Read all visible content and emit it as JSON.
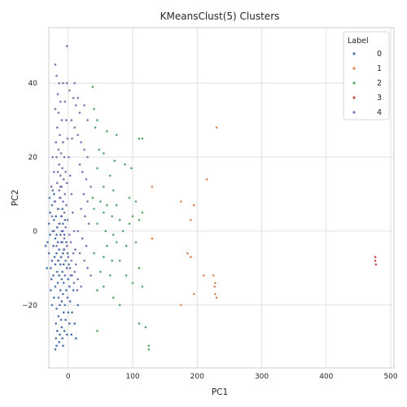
{
  "chart_data": {
    "type": "scatter",
    "title": "KMeansClust(5) Clusters",
    "xlabel": "PC1",
    "ylabel": "PC2",
    "xlim": [
      -30,
      505
    ],
    "ylim": [
      -37,
      55
    ],
    "xticks": [
      0,
      100,
      200,
      300,
      400,
      500
    ],
    "yticks": [
      -20,
      0,
      20,
      40
    ],
    "grid": true,
    "legend": {
      "title": "Label",
      "placement": "top-right"
    },
    "series": [
      {
        "name": "0",
        "color": "#4c72b0",
        "points": [
          [
            -35,
            -4
          ],
          [
            -32,
            -3
          ],
          [
            -30,
            2
          ],
          [
            -30,
            -6
          ],
          [
            -28,
            5
          ],
          [
            -28,
            -1
          ],
          [
            -27,
            -10
          ],
          [
            -27,
            -16
          ],
          [
            -26,
            -13
          ],
          [
            -25,
            7
          ],
          [
            -25,
            -8
          ],
          [
            -24,
            0
          ],
          [
            -24,
            11
          ],
          [
            -23,
            -4
          ],
          [
            -23,
            -12
          ],
          [
            -22,
            3
          ],
          [
            -22,
            -18
          ],
          [
            -21,
            -7
          ],
          [
            -21,
            8
          ],
          [
            -20,
            -2
          ],
          [
            -20,
            -9
          ],
          [
            -20,
            -15
          ],
          [
            -19,
            4
          ],
          [
            -19,
            -25
          ],
          [
            -19,
            -29
          ],
          [
            -18,
            -1
          ],
          [
            -18,
            -6
          ],
          [
            -18,
            -21
          ],
          [
            -17,
            1
          ],
          [
            -17,
            -11
          ],
          [
            -17,
            -27
          ],
          [
            -16,
            6
          ],
          [
            -16,
            -3
          ],
          [
            -16,
            -14
          ],
          [
            -15,
            -8
          ],
          [
            -15,
            -23
          ],
          [
            -15,
            -18
          ],
          [
            -14,
            2
          ],
          [
            -14,
            -5
          ],
          [
            -14,
            -12
          ],
          [
            -13,
            -20
          ],
          [
            -13,
            9
          ],
          [
            -13,
            -28
          ],
          [
            -12,
            -1
          ],
          [
            -12,
            -9
          ],
          [
            -12,
            -16
          ],
          [
            -11,
            4
          ],
          [
            -11,
            -24
          ],
          [
            -11,
            -7
          ],
          [
            -10,
            -13
          ],
          [
            -10,
            0
          ],
          [
            -10,
            -19
          ],
          [
            -10,
            -26
          ],
          [
            -9,
            -3
          ],
          [
            -9,
            6
          ],
          [
            -9,
            -11
          ],
          [
            -9,
            -29
          ],
          [
            -8,
            -6
          ],
          [
            -8,
            -17
          ],
          [
            -8,
            2
          ],
          [
            -7,
            -22
          ],
          [
            -7,
            -9
          ],
          [
            -7,
            -14
          ],
          [
            -6,
            -1
          ],
          [
            -6,
            -27
          ],
          [
            -6,
            -5
          ],
          [
            -5,
            -12
          ],
          [
            -5,
            -20
          ],
          [
            -5,
            3
          ],
          [
            -4,
            -8
          ],
          [
            -4,
            -24
          ],
          [
            -3,
            -16
          ],
          [
            -3,
            -3
          ],
          [
            -2,
            -10
          ],
          [
            -2,
            -28
          ],
          [
            -1,
            -6
          ],
          [
            -1,
            -18
          ],
          [
            0,
            -13
          ],
          [
            0,
            -22
          ],
          [
            1,
            -9
          ],
          [
            2,
            -25
          ],
          [
            2,
            -15
          ],
          [
            3,
            -19
          ],
          [
            4,
            -12
          ],
          [
            5,
            -28
          ],
          [
            6,
            -22
          ],
          [
            8,
            -16
          ],
          [
            10,
            -25
          ],
          [
            12,
            -29
          ],
          [
            15,
            -20
          ],
          [
            -20,
            -32
          ],
          [
            -25,
            -20
          ],
          [
            -33,
            -10
          ],
          [
            -29,
            9
          ],
          [
            -22,
            10
          ],
          [
            -12,
            12
          ],
          [
            -26,
            12
          ],
          [
            -18,
            -31
          ],
          [
            -14,
            -30
          ],
          [
            -8,
            -31
          ]
        ]
      },
      {
        "name": "1",
        "color": "#dd8452",
        "points": [
          [
            230,
            28
          ],
          [
            215,
            14
          ],
          [
            130,
            12
          ],
          [
            175,
            8
          ],
          [
            195,
            7
          ],
          [
            190,
            3
          ],
          [
            130,
            -2
          ],
          [
            185,
            -6
          ],
          [
            190,
            -7
          ],
          [
            175,
            -20
          ],
          [
            195,
            -17
          ],
          [
            210,
            -12
          ],
          [
            225,
            -12
          ],
          [
            228,
            -14
          ],
          [
            227,
            -15
          ],
          [
            228,
            -17
          ],
          [
            230,
            -18
          ]
        ]
      },
      {
        "name": "2",
        "color": "#55a868",
        "points": [
          [
            38,
            39
          ],
          [
            40,
            33
          ],
          [
            45,
            30
          ],
          [
            42,
            28
          ],
          [
            60,
            27
          ],
          [
            75,
            26
          ],
          [
            110,
            25
          ],
          [
            115,
            25
          ],
          [
            48,
            22
          ],
          [
            55,
            21
          ],
          [
            72,
            19
          ],
          [
            88,
            18
          ],
          [
            98,
            17
          ],
          [
            45,
            17
          ],
          [
            65,
            15
          ],
          [
            55,
            12
          ],
          [
            70,
            11
          ],
          [
            38,
            9
          ],
          [
            50,
            8
          ],
          [
            60,
            7
          ],
          [
            75,
            7
          ],
          [
            95,
            9
          ],
          [
            105,
            8
          ],
          [
            115,
            5
          ],
          [
            40,
            6
          ],
          [
            55,
            5
          ],
          [
            68,
            4
          ],
          [
            80,
            3
          ],
          [
            100,
            4
          ],
          [
            110,
            3
          ],
          [
            45,
            2
          ],
          [
            58,
            0
          ],
          [
            70,
            -1
          ],
          [
            85,
            0
          ],
          [
            95,
            2
          ],
          [
            60,
            -4
          ],
          [
            75,
            -3
          ],
          [
            90,
            -4
          ],
          [
            105,
            -3
          ],
          [
            40,
            -6
          ],
          [
            55,
            -7
          ],
          [
            68,
            -8
          ],
          [
            80,
            -8
          ],
          [
            110,
            -10
          ],
          [
            50,
            -11
          ],
          [
            65,
            -12
          ],
          [
            90,
            -12
          ],
          [
            100,
            -14
          ],
          [
            55,
            -15
          ],
          [
            45,
            -16
          ],
          [
            70,
            -18
          ],
          [
            80,
            -20
          ],
          [
            110,
            -25
          ],
          [
            120,
            -26
          ],
          [
            125,
            -31
          ],
          [
            125,
            -32
          ],
          [
            45,
            -27
          ],
          [
            115,
            -15
          ]
        ]
      },
      {
        "name": "3",
        "color": "#c44e52",
        "points": [
          [
            476,
            -7
          ],
          [
            476,
            -8
          ],
          [
            477,
            -9
          ]
        ]
      },
      {
        "name": "4",
        "color": "#8172b3",
        "points": [
          [
            -2,
            50
          ],
          [
            -20,
            45
          ],
          [
            -18,
            42
          ],
          [
            -14,
            40
          ],
          [
            -16,
            37
          ],
          [
            -12,
            35
          ],
          [
            -20,
            33
          ],
          [
            -15,
            32
          ],
          [
            -10,
            30
          ],
          [
            -17,
            28
          ],
          [
            -13,
            26
          ],
          [
            -19,
            24
          ],
          [
            -8,
            24
          ],
          [
            -15,
            22
          ],
          [
            -11,
            21
          ],
          [
            -18,
            20
          ],
          [
            -6,
            20
          ],
          [
            -14,
            18
          ],
          [
            -9,
            17
          ],
          [
            -16,
            16
          ],
          [
            -4,
            16
          ],
          [
            -12,
            15
          ],
          [
            -7,
            14
          ],
          [
            -17,
            13
          ],
          [
            -2,
            13
          ],
          [
            -10,
            12
          ],
          [
            -14,
            11
          ],
          [
            -5,
            10
          ],
          [
            -12,
            9
          ],
          [
            -8,
            8
          ],
          [
            -3,
            7
          ],
          [
            -15,
            6
          ],
          [
            -6,
            5
          ],
          [
            -10,
            4
          ],
          [
            -1,
            3
          ],
          [
            -13,
            2
          ],
          [
            -4,
            1
          ],
          [
            -8,
            0
          ],
          [
            2,
            -1
          ],
          [
            -6,
            -2
          ],
          [
            -11,
            -3
          ],
          [
            4,
            -3
          ],
          [
            -2,
            -4
          ],
          [
            -7,
            -5
          ],
          [
            8,
            -6
          ],
          [
            0,
            -7
          ],
          [
            5,
            -8
          ],
          [
            12,
            -9
          ],
          [
            3,
            -10
          ],
          [
            10,
            -11
          ],
          [
            6,
            -12
          ],
          [
            15,
            -13
          ],
          [
            9,
            -14
          ],
          [
            20,
            -15
          ],
          [
            14,
            -16
          ],
          [
            -2,
            40
          ],
          [
            2,
            38
          ],
          [
            8,
            36
          ],
          [
            12,
            34
          ],
          [
            5,
            30
          ],
          [
            10,
            28
          ],
          [
            15,
            26
          ],
          [
            20,
            24
          ],
          [
            25,
            22
          ],
          [
            30,
            20
          ],
          [
            18,
            18
          ],
          [
            22,
            16
          ],
          [
            28,
            14
          ],
          [
            35,
            12
          ],
          [
            24,
            10
          ],
          [
            30,
            8
          ],
          [
            20,
            6
          ],
          [
            26,
            4
          ],
          [
            32,
            2
          ],
          [
            15,
            0
          ],
          [
            22,
            -2
          ],
          [
            28,
            -4
          ],
          [
            18,
            -6
          ],
          [
            25,
            -8
          ],
          [
            30,
            -10
          ],
          [
            35,
            -12
          ],
          [
            -24,
            20
          ],
          [
            -22,
            16
          ],
          [
            -26,
            12
          ],
          [
            -20,
            8
          ],
          [
            -25,
            4
          ],
          [
            -22,
            0
          ],
          [
            -18,
            -4
          ],
          [
            -16,
            -8
          ],
          [
            10,
            40
          ],
          [
            15,
            36
          ],
          [
            18,
            32
          ],
          [
            25,
            34
          ],
          [
            30,
            30
          ],
          [
            6,
            25
          ],
          [
            -8,
            40
          ],
          [
            -5,
            35
          ],
          [
            -3,
            30
          ],
          [
            -1,
            25
          ],
          [
            1,
            20
          ],
          [
            3,
            15
          ],
          [
            5,
            10
          ],
          [
            7,
            5
          ],
          [
            9,
            0
          ],
          [
            11,
            -5
          ]
        ]
      }
    ]
  }
}
